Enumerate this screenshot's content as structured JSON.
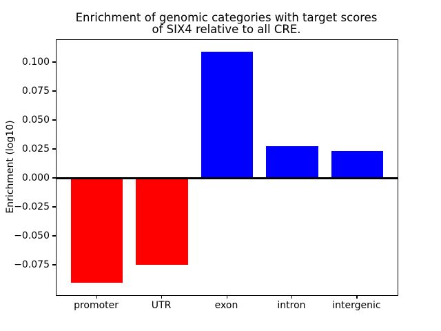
{
  "chart_data": {
    "type": "bar",
    "title": "Enrichment of genomic categories with target scores\nof SIX4 relative to all CRE.",
    "title_lines": [
      "Enrichment of genomic categories with target scores",
      "of SIX4 relative to all CRE."
    ],
    "xlabel": "",
    "ylabel": "Enrichment (log10)",
    "categories": [
      "promoter",
      "UTR",
      "exon",
      "intron",
      "intergenic"
    ],
    "values": [
      -0.0901,
      -0.0745,
      0.1095,
      0.028,
      0.0238
    ],
    "bar_colors": [
      "#ff0000",
      "#ff0000",
      "#0000ff",
      "#0000ff",
      "#0000ff"
    ],
    "negative_color": "#ff0000",
    "positive_color": "#0000ff",
    "bar_width": 0.8,
    "ylim": [
      -0.1006,
      0.1196
    ],
    "xlim": [
      -0.62,
      4.62
    ],
    "yticks": [
      0.1,
      0.075,
      0.05,
      0.025,
      0.0,
      -0.025,
      -0.05,
      -0.075
    ],
    "ytick_labels": [
      "0.100",
      "0.075",
      "0.050",
      "0.025",
      "0.000",
      "−0.025",
      "−0.050",
      "−0.075"
    ],
    "zero_line": true,
    "grid": false,
    "legend": false,
    "plot_background": "#ffffff",
    "spine_color": "#000000"
  }
}
